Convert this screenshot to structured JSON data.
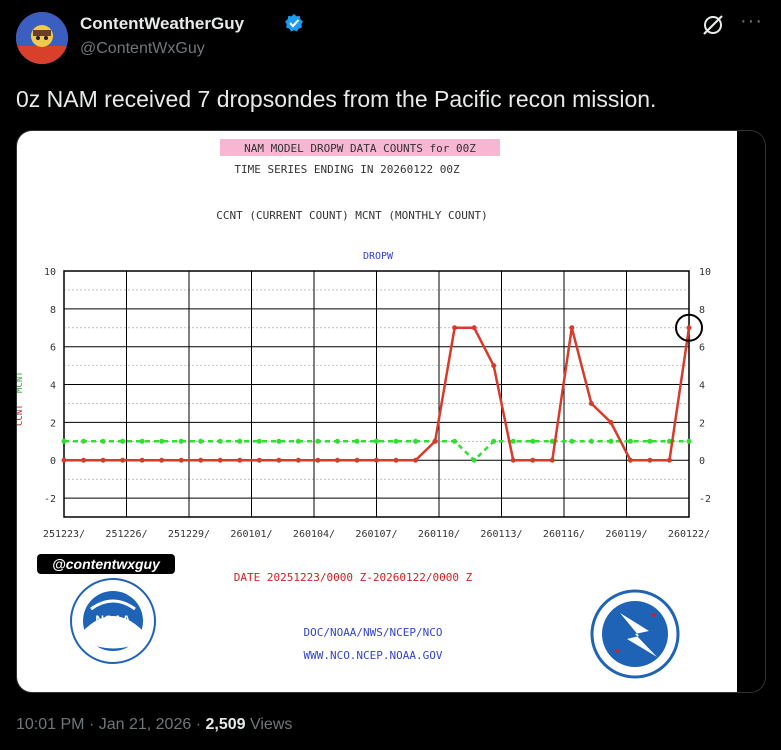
{
  "tweet": {
    "display_name": "ContentWeatherGuy",
    "handle": "@ContentWxGuy",
    "text": "0z NAM received 7 dropsondes from the Pacific recon mission.",
    "time": "10:01 PM",
    "separator": "·",
    "date": "Jan 21, 2026",
    "views_count": "2,509",
    "views_label": "Views",
    "more_label": "···"
  },
  "colors": {
    "background": "#000000",
    "text_primary": "#e7e9ea",
    "text_secondary": "#71767b",
    "verified": "#1d9bf0",
    "ccnt_line": "#d93a2a",
    "mcnt_line": "#33dd33",
    "title_highlight": "#f7b6d2",
    "chart_text": "#333333",
    "dropw_label": "#3344cc",
    "date_text": "#cc2222",
    "noaa_blue": "#1e63b5"
  },
  "chart_header": {
    "title": "NAM MODEL DROPW DATA COUNTS for 00Z",
    "subtitle": "TIME SERIES ENDING IN 20260122 00Z",
    "legend_note": "CCNT (CURRENT COUNT) MCNT (MONTHLY COUNT)",
    "left_axis_ccnt": "CCNT",
    "left_axis_mcnt": "MCNT",
    "date_range": "DATE 20251223/0000 Z-20260122/0000 Z",
    "watermark": "@contentwxguy",
    "footer_line1": "DOC/NOAA/NWS/NCEP/NCO",
    "footer_line2": "WWW.NCO.NCEP.NOAA.GOV",
    "noaa_logo_text": "NOAA"
  },
  "chart_data": {
    "type": "line",
    "series_label": "DROPW",
    "ylim": [
      -3,
      10
    ],
    "y_ticks_left": [
      "10",
      "8",
      "6",
      "4",
      "2",
      "0",
      "-2"
    ],
    "y_ticks_right": [
      "10",
      "8",
      "6",
      "4",
      "2",
      "0",
      "-2"
    ],
    "x_tick_labels": [
      "251223/",
      "251226/",
      "251229/",
      "260101/",
      "260104/",
      "260107/",
      "260110/",
      "260113/",
      "260116/",
      "260119/",
      "260122/"
    ],
    "series": [
      {
        "name": "CCNT",
        "values": [
          0,
          0,
          0,
          0,
          0,
          0,
          0,
          0,
          0,
          0,
          0,
          0,
          0,
          0,
          0,
          0,
          0,
          0,
          0,
          1,
          7,
          7,
          5,
          0,
          0,
          0,
          7,
          3,
          2,
          0,
          0,
          0,
          7
        ]
      },
      {
        "name": "MCNT",
        "values": [
          1,
          1,
          1,
          1,
          1,
          1,
          1,
          1,
          1,
          1,
          1,
          1,
          1,
          1,
          1,
          1,
          1,
          1,
          1,
          1,
          1,
          0,
          1,
          1,
          1,
          1,
          1,
          1,
          1,
          1,
          1,
          1,
          1
        ]
      }
    ],
    "highlighted_point": {
      "series": "CCNT",
      "index": 32,
      "value": 7
    }
  }
}
